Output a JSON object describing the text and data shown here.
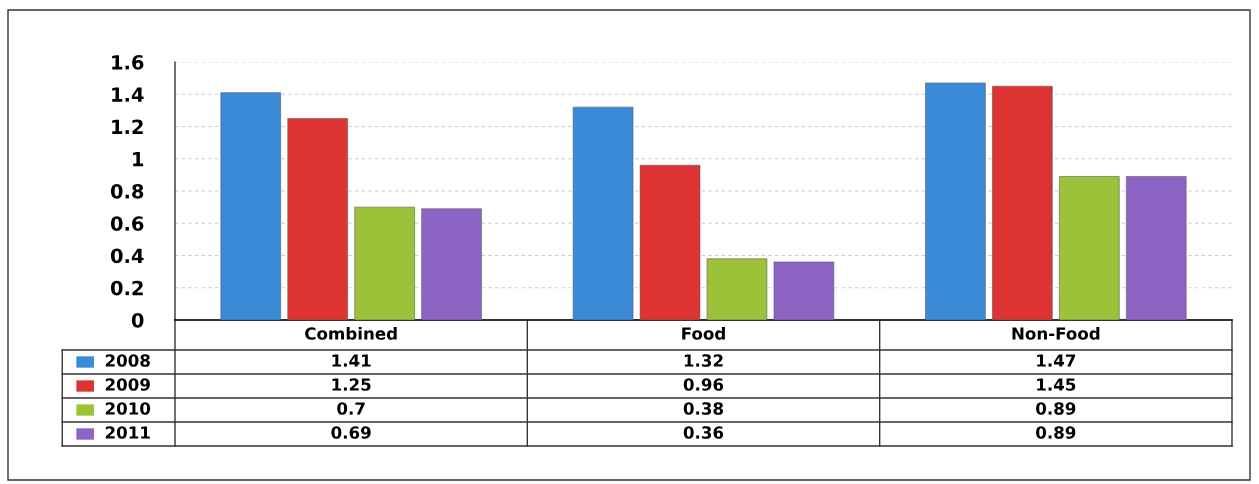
{
  "chart_data": {
    "type": "bar",
    "categories": [
      "Combined",
      "Food",
      "Non-Food"
    ],
    "series": [
      {
        "name": "2008",
        "color": "#3a8ad8",
        "values": [
          1.41,
          1.32,
          1.47
        ]
      },
      {
        "name": "2009",
        "color": "#dd3333",
        "values": [
          1.25,
          0.96,
          1.45
        ]
      },
      {
        "name": "2010",
        "color": "#9cc23a",
        "values": [
          0.7,
          0.38,
          0.89
        ]
      },
      {
        "name": "2011",
        "color": "#8c64c4",
        "values": [
          0.69,
          0.36,
          0.89
        ]
      }
    ],
    "ylim": [
      0,
      1.6
    ],
    "yticks": [
      0,
      0.2,
      0.4,
      0.6,
      0.8,
      1,
      1.2,
      1.4,
      1.6
    ],
    "grid": "y",
    "data_labels": true,
    "legend": "bottom"
  }
}
